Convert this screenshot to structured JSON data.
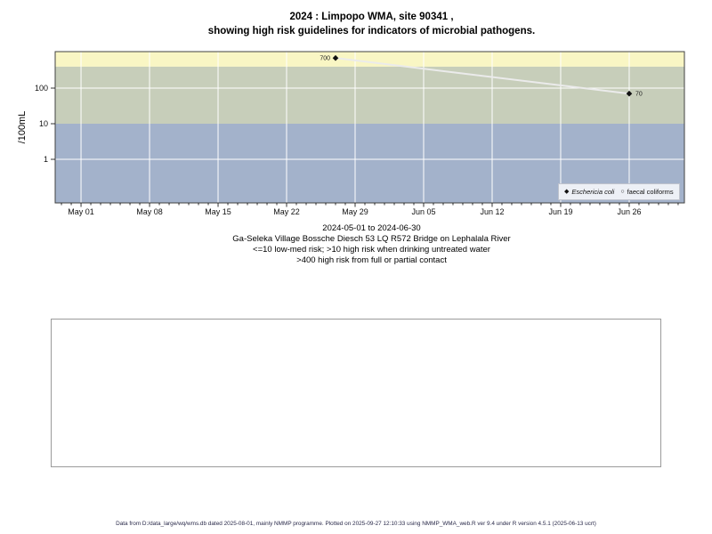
{
  "title": {
    "line1": "2024 : Limpopo WMA, site 90341 ,",
    "line2": "showing high risk guidelines for indicators of microbial pathogens."
  },
  "chart_data": {
    "type": "scatter",
    "title": "2024 : Limpopo WMA, site 90341 , showing high risk guidelines for indicators of microbial pathogens.",
    "x_axis": {
      "start_date": "2024-05-01",
      "end_date": "2024-06-30",
      "tick_labels": [
        "May 01",
        "May 08",
        "May 15",
        "May 22",
        "May 29",
        "Jun 05",
        "Jun 12",
        "Jun 19",
        "Jun 26"
      ],
      "tick_day_offsets": [
        0,
        7,
        14,
        21,
        28,
        35,
        42,
        49,
        56
      ],
      "minor_tick_every_days": 1,
      "domain_day_offsets": [
        -2.64,
        61.64
      ]
    },
    "y_axis": {
      "label": "/100mL",
      "scale": "log10",
      "limits": [
        0.0596,
        1059
      ],
      "tick_values": [
        1,
        10,
        100
      ],
      "gridline_values": [
        1,
        100
      ]
    },
    "grid": "on",
    "bands": [
      {
        "name": "high-risk-full-partial-contact",
        "from": 400,
        "to": 1059,
        "color": "#f9f6c4"
      },
      {
        "name": "high-risk-drinking-untreated",
        "from": 10,
        "to": 400,
        "color": "#c7ceba"
      },
      {
        "name": "low-med-risk",
        "from": 0.0596,
        "to": 10,
        "color": "#a3b2cb"
      }
    ],
    "series": [
      {
        "name": "Eschericia coli",
        "marker": "filled-diamond",
        "marker_color": "#111111",
        "line_color": "#ebebeb",
        "points": [
          {
            "date": "2024-05-27",
            "value": 700,
            "label": "700",
            "label_side": "left"
          },
          {
            "date": "2024-06-26",
            "value": 70,
            "label": "70",
            "label_side": "right"
          }
        ]
      },
      {
        "name": "faecal coliforms",
        "marker": "open-circle",
        "marker_color": "#111111",
        "line_color": "#ebebeb",
        "points": []
      }
    ],
    "legend_position": "bottom-right-inside"
  },
  "subtitle": {
    "line1": "2024-05-01 to 2024-06-30",
    "line2": "Ga-Seleka Village Bossche Diesch 53 LQ R572 Bridge on Lephalala River",
    "line3": "<=10 low-med risk; >10 high risk when drinking untreated water",
    "line4": ">400 high risk from full or partial contact"
  },
  "footer": {
    "text": "Data from D:/data_large/wq/wms.db dated 2025-08-01, mainly NMMP programme. Plotted on 2025-09-27 12:10:33 using NMMP_WMA_web.R ver 9.4 under R version 4.5.1 (2025-06-13 ucrt)"
  },
  "legend": {
    "items": [
      {
        "label": "Eschericia coli",
        "marker_glyph": "◆"
      },
      {
        "label": "faecal coliforms",
        "marker_glyph": "○"
      }
    ]
  },
  "colors": {
    "band_high_contact": "#f9f6c4",
    "band_high_drinking": "#c7ceba",
    "band_low_med": "#a3b2cb",
    "gridline": "#ffffff",
    "series_line": "#ebebeb",
    "marker": "#111111",
    "panel_border": "#424242",
    "legend_bg": "#edf0f6"
  }
}
